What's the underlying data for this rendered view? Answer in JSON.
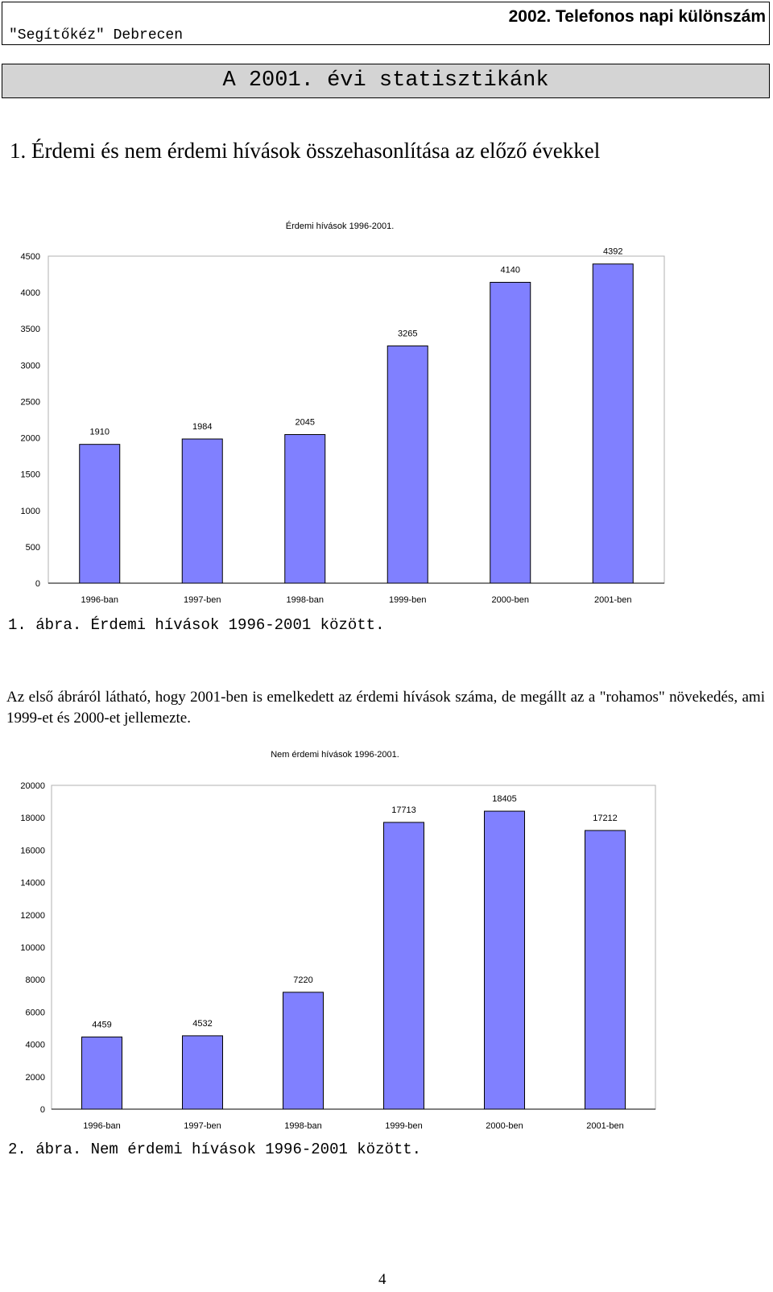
{
  "header": {
    "left_text": "\"Segítőkéz\" Debrecen",
    "right_text": "2002. Telefonos napi különszám"
  },
  "title": "A 2001. évi statisztikánk",
  "section_heading": "1. Érdemi és nem érdemi hívások összehasonlítása az előző évekkel",
  "chart_data": [
    {
      "type": "bar",
      "title": "Érdemi hívások 1996-2001.",
      "categories": [
        "1996-ban",
        "1997-ben",
        "1998-ban",
        "1999-ben",
        "2000-ben",
        "2001-ben"
      ],
      "values": [
        1910,
        1984,
        2045,
        3265,
        4140,
        4392
      ],
      "ylim": [
        0,
        4500
      ],
      "yticks": [
        0,
        500,
        1000,
        1500,
        2000,
        2500,
        3000,
        3500,
        4000,
        4500
      ],
      "bar_color": "#8080ff",
      "grid": false,
      "legend": "none"
    },
    {
      "type": "bar",
      "title": "Nem érdemi hívások 1996-2001.",
      "categories": [
        "1996-ban",
        "1997-ben",
        "1998-ban",
        "1999-ben",
        "2000-ben",
        "2001-ben"
      ],
      "values": [
        4459,
        4532,
        7220,
        17713,
        18405,
        17212
      ],
      "ylim": [
        0,
        20000
      ],
      "yticks": [
        0,
        2000,
        4000,
        6000,
        8000,
        10000,
        12000,
        14000,
        16000,
        18000,
        20000
      ],
      "bar_color": "#8080ff",
      "grid": false,
      "legend": "none"
    }
  ],
  "captions": {
    "figure1": "1. ábra. Érdemi hívások 1996-2001 között.",
    "figure2": "2. ábra. Nem érdemi hívások 1996-2001 között."
  },
  "paragraph": "Az első ábráról látható, hogy 2001-ben is emelkedett az érdemi hívások száma, de megállt az a \"rohamos\" növekedés, ami 1999-et és 2000-et jellemezte.",
  "page_number": "4"
}
